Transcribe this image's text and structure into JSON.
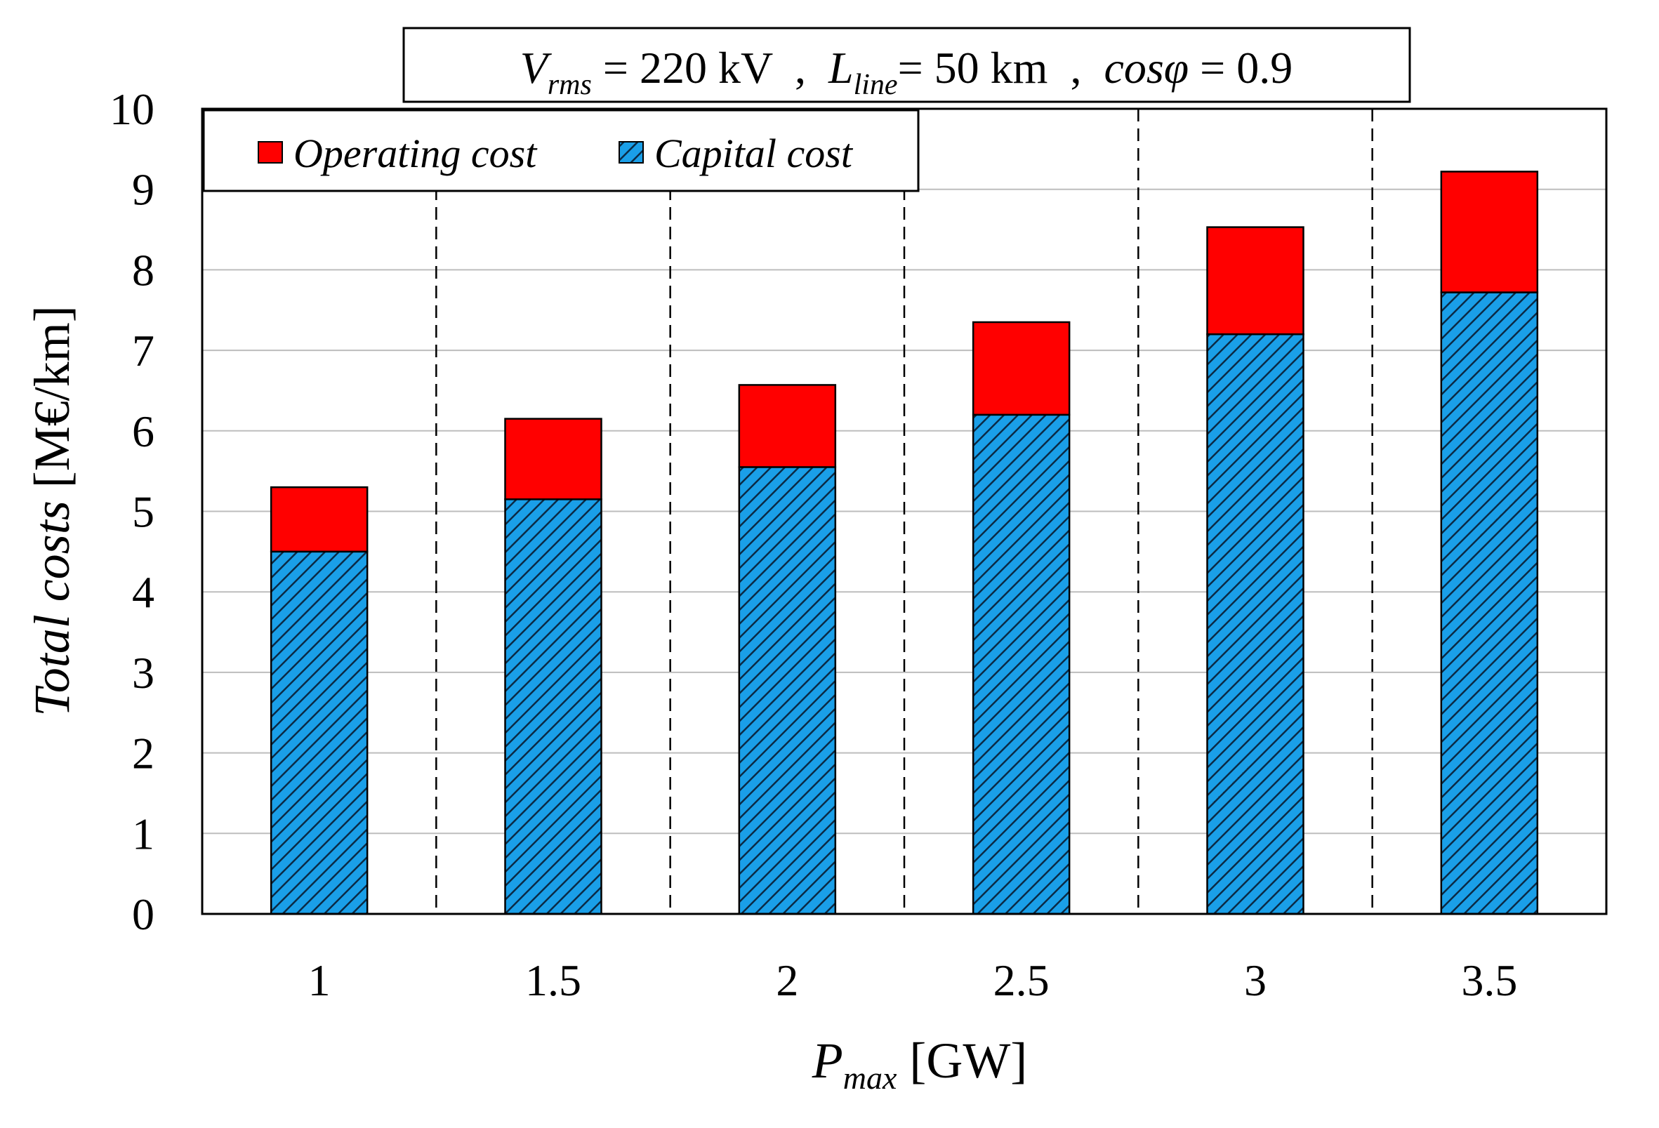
{
  "chart_data": {
    "type": "bar",
    "stacked": true,
    "title_parts": {
      "v_main": "V",
      "v_sub": "rms",
      "v_value": " = 220 kV  ,  ",
      "l_main": "L",
      "l_sub": "line",
      "l_value": "= 50 km  ,  ",
      "cos_label": "cosφ",
      "cos_value": " = 0.9"
    },
    "xlabel_parts": {
      "main": "P",
      "sub": "max",
      "unit": " [GW]"
    },
    "ylabel_parts": {
      "italic": "Total costs",
      "unit": " [M€/km]"
    },
    "categories": [
      "1",
      "1.5",
      "2",
      "2.5",
      "3",
      "3.5"
    ],
    "series": [
      {
        "name": "Capital cost",
        "color": "#1a9fe8",
        "pattern": "diagonal-hatch",
        "values": [
          4.5,
          5.15,
          5.55,
          6.2,
          7.2,
          7.72
        ]
      },
      {
        "name": "Operating cost",
        "color": "#ff0000",
        "values": [
          0.8,
          1.0,
          1.02,
          1.15,
          1.33,
          1.5
        ]
      }
    ],
    "ylim": [
      0,
      10
    ],
    "yticks": [
      "0",
      "1",
      "2",
      "3",
      "4",
      "5",
      "6",
      "7",
      "8",
      "9",
      "10"
    ],
    "grid": {
      "horizontal": true,
      "vertical_dashed_separators": true
    },
    "legend_position": "top-left",
    "legend_order": [
      "Operating cost",
      "Capital cost"
    ]
  }
}
